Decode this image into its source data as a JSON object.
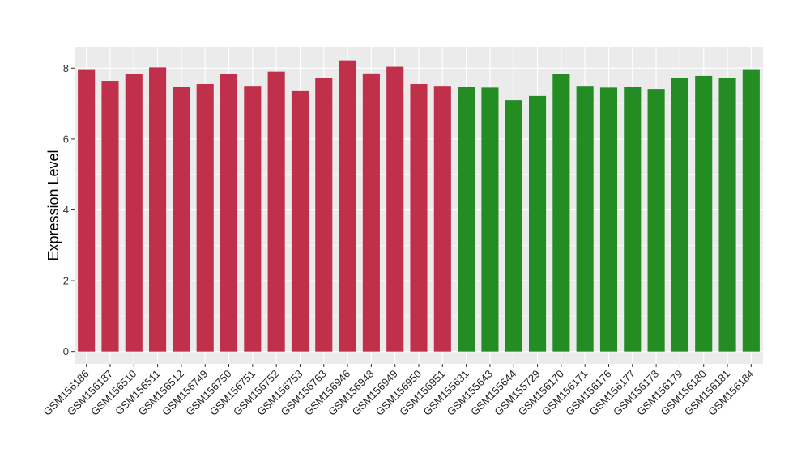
{
  "chart_data": {
    "type": "bar",
    "title": "",
    "xlabel": "",
    "ylabel": "Expression Level",
    "ylim": [
      -0.35,
      8.6
    ],
    "y_ticks": [
      0,
      2,
      4,
      6,
      8
    ],
    "grid": true,
    "categories": [
      "GSM156186",
      "GSM156187",
      "GSM156510",
      "GSM156511",
      "GSM156512",
      "GSM156749",
      "GSM156750",
      "GSM156751",
      "GSM156752",
      "GSM156753",
      "GSM156763",
      "GSM156946",
      "GSM156948",
      "GSM156949",
      "GSM156950",
      "GSM156951",
      "GSM155631",
      "GSM155643",
      "GSM155644",
      "GSM155729",
      "GSM156170",
      "GSM156171",
      "GSM156176",
      "GSM156177",
      "GSM156178",
      "GSM156179",
      "GSM156180",
      "GSM156181",
      "GSM156184"
    ],
    "values": [
      7.97,
      7.64,
      7.83,
      8.02,
      7.46,
      7.55,
      7.83,
      7.5,
      7.9,
      7.37,
      7.71,
      8.22,
      7.85,
      8.04,
      7.55,
      7.5,
      7.48,
      7.45,
      7.09,
      7.21,
      7.83,
      7.5,
      7.45,
      7.47,
      7.41,
      7.72,
      7.78,
      7.72,
      7.97
    ],
    "groups": [
      "a",
      "a",
      "a",
      "a",
      "a",
      "a",
      "a",
      "a",
      "a",
      "a",
      "a",
      "a",
      "a",
      "a",
      "a",
      "a",
      "b",
      "b",
      "b",
      "b",
      "b",
      "b",
      "b",
      "b",
      "b",
      "b",
      "b",
      "b",
      "b"
    ],
    "group_colors": {
      "a": "#c0304a",
      "b": "#238c23"
    },
    "panel_background": "#ebebeb",
    "grid_color": "#ffffff"
  }
}
